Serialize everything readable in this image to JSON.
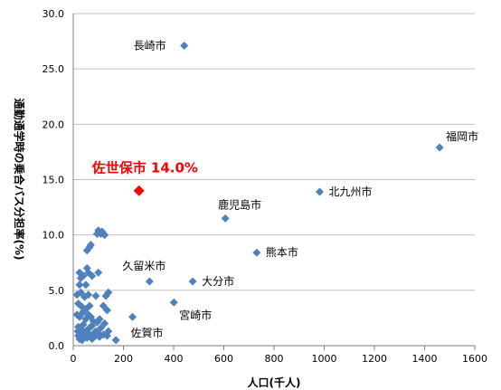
{
  "chart_data": {
    "type": "scatter",
    "title": "",
    "xlabel": "人口(千人)",
    "ylabel": "通勤通学時の乗合バス分担率(%)",
    "xlim": [
      0,
      1600
    ],
    "ylim": [
      0,
      30
    ],
    "xticks": [
      "0",
      "200",
      "400",
      "600",
      "800",
      "1000",
      "1200",
      "1400",
      "1600"
    ],
    "yticks": [
      "0.0",
      "5.0",
      "10.0",
      "15.0",
      "20.0",
      "25.0",
      "30.0"
    ],
    "grid": "horizontal",
    "legend": "none",
    "marker_color": "#4f81bd",
    "highlight_color": "#ff0000",
    "labeled_points": [
      {
        "label": "長崎市",
        "x": 442,
        "y": 27.1
      },
      {
        "label": "福岡市",
        "x": 1460,
        "y": 17.9
      },
      {
        "label": "北九州市",
        "x": 982,
        "y": 13.9
      },
      {
        "label": "鹿児島市",
        "x": 606,
        "y": 11.5
      },
      {
        "label": "熊本市",
        "x": 731,
        "y": 8.4
      },
      {
        "label": "久留米市",
        "x": 304,
        "y": 5.8
      },
      {
        "label": "大分市",
        "x": 476,
        "y": 5.8
      },
      {
        "label": "宮崎市",
        "x": 401,
        "y": 3.9
      },
      {
        "label": "佐賀市",
        "x": 236,
        "y": 2.6
      }
    ],
    "highlight": {
      "label": "佐世保市 14.0%",
      "x": 262,
      "y": 14.0
    },
    "other_points": [
      [
        15,
        4.6
      ],
      [
        25,
        6.6
      ],
      [
        30,
        6.1
      ],
      [
        40,
        6.3
      ],
      [
        55,
        7.0
      ],
      [
        60,
        6.6
      ],
      [
        75,
        6.3
      ],
      [
        100,
        6.6
      ],
      [
        55,
        8.6
      ],
      [
        65,
        8.9
      ],
      [
        70,
        9.1
      ],
      [
        95,
        10.1
      ],
      [
        100,
        10.4
      ],
      [
        115,
        10.3
      ],
      [
        110,
        10.1
      ],
      [
        125,
        10.0
      ],
      [
        25,
        5.5
      ],
      [
        50,
        5.5
      ],
      [
        30,
        4.8
      ],
      [
        45,
        4.4
      ],
      [
        60,
        4.6
      ],
      [
        90,
        4.5
      ],
      [
        130,
        4.5
      ],
      [
        140,
        4.8
      ],
      [
        20,
        3.8
      ],
      [
        35,
        3.5
      ],
      [
        40,
        3.1
      ],
      [
        50,
        3.3
      ],
      [
        65,
        3.6
      ],
      [
        120,
        3.6
      ],
      [
        135,
        3.2
      ],
      [
        15,
        2.8
      ],
      [
        25,
        2.6
      ],
      [
        35,
        2.9
      ],
      [
        50,
        2.4
      ],
      [
        60,
        2.8
      ],
      [
        70,
        2.6
      ],
      [
        80,
        2.2
      ],
      [
        95,
        2.1
      ],
      [
        105,
        2.4
      ],
      [
        125,
        2.0
      ],
      [
        20,
        1.7
      ],
      [
        30,
        1.5
      ],
      [
        40,
        1.9
      ],
      [
        55,
        1.4
      ],
      [
        65,
        1.6
      ],
      [
        75,
        1.8
      ],
      [
        90,
        1.3
      ],
      [
        110,
        1.6
      ],
      [
        20,
        0.9
      ],
      [
        25,
        0.6
      ],
      [
        30,
        1.1
      ],
      [
        35,
        0.5
      ],
      [
        45,
        0.8
      ],
      [
        55,
        0.7
      ],
      [
        65,
        1.0
      ],
      [
        75,
        0.6
      ],
      [
        90,
        0.9
      ],
      [
        100,
        1.1
      ],
      [
        105,
        0.8
      ],
      [
        120,
        1.0
      ],
      [
        135,
        0.9
      ],
      [
        170,
        0.5
      ],
      [
        18,
        1.3
      ],
      [
        42,
        1.2
      ],
      [
        85,
        1.2
      ],
      [
        140,
        1.3
      ]
    ]
  }
}
